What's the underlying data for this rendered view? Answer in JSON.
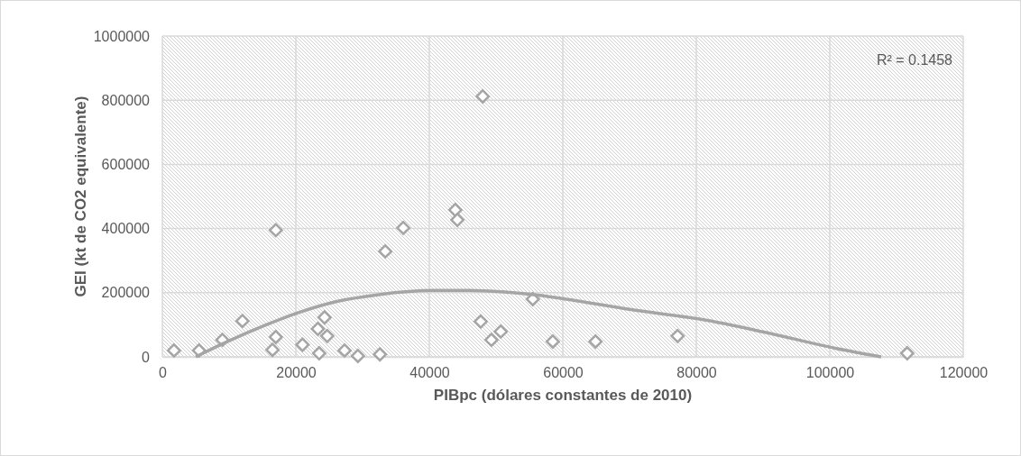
{
  "chart_data": {
    "type": "scatter",
    "xlabel": "PIBpc (dólares constantes de 2010)",
    "ylabel": "GEI (kt de CO2 equivalente)",
    "xlim": [
      0,
      120000
    ],
    "ylim": [
      0,
      1000000
    ],
    "xticks": [
      0,
      20000,
      40000,
      60000,
      80000,
      100000,
      120000
    ],
    "yticks": [
      0,
      200000,
      400000,
      600000,
      800000,
      1000000
    ],
    "grid": true,
    "annotations": [
      "R² = 0.1458"
    ],
    "series": [
      {
        "marker": "diamond",
        "color": "#a5a5a5",
        "x": [
          1750,
          5500,
          9000,
          12000,
          16500,
          17000,
          17000,
          21000,
          23300,
          23500,
          24300,
          24700,
          27300,
          29300,
          32600,
          33400,
          36100,
          43900,
          44200,
          47700,
          48000,
          49300,
          50700,
          55500,
          58500,
          64900,
          77200,
          111600
        ],
        "values": [
          20000,
          20000,
          53000,
          112000,
          22000,
          62000,
          395000,
          38000,
          87000,
          11000,
          123000,
          65000,
          20000,
          3000,
          8000,
          329000,
          402000,
          458000,
          427000,
          110000,
          812000,
          53000,
          79000,
          180000,
          48000,
          48000,
          65000,
          11000
        ]
      },
      {
        "type": "line",
        "marker": "none",
        "line_style": "solid",
        "color": "#a5a5a5",
        "x": [
          5000,
          10000,
          15000,
          20700,
          26000,
          32400,
          40500,
          46000,
          51300,
          56000,
          62000,
          70000,
          80700,
          90000,
          101000,
          107700
        ],
        "values": [
          0,
          50000,
          95000,
          140000,
          172000,
          194000,
          207000,
          207000,
          202000,
          193000,
          175000,
          148000,
          117000,
          78000,
          26000,
          0
        ]
      }
    ]
  }
}
